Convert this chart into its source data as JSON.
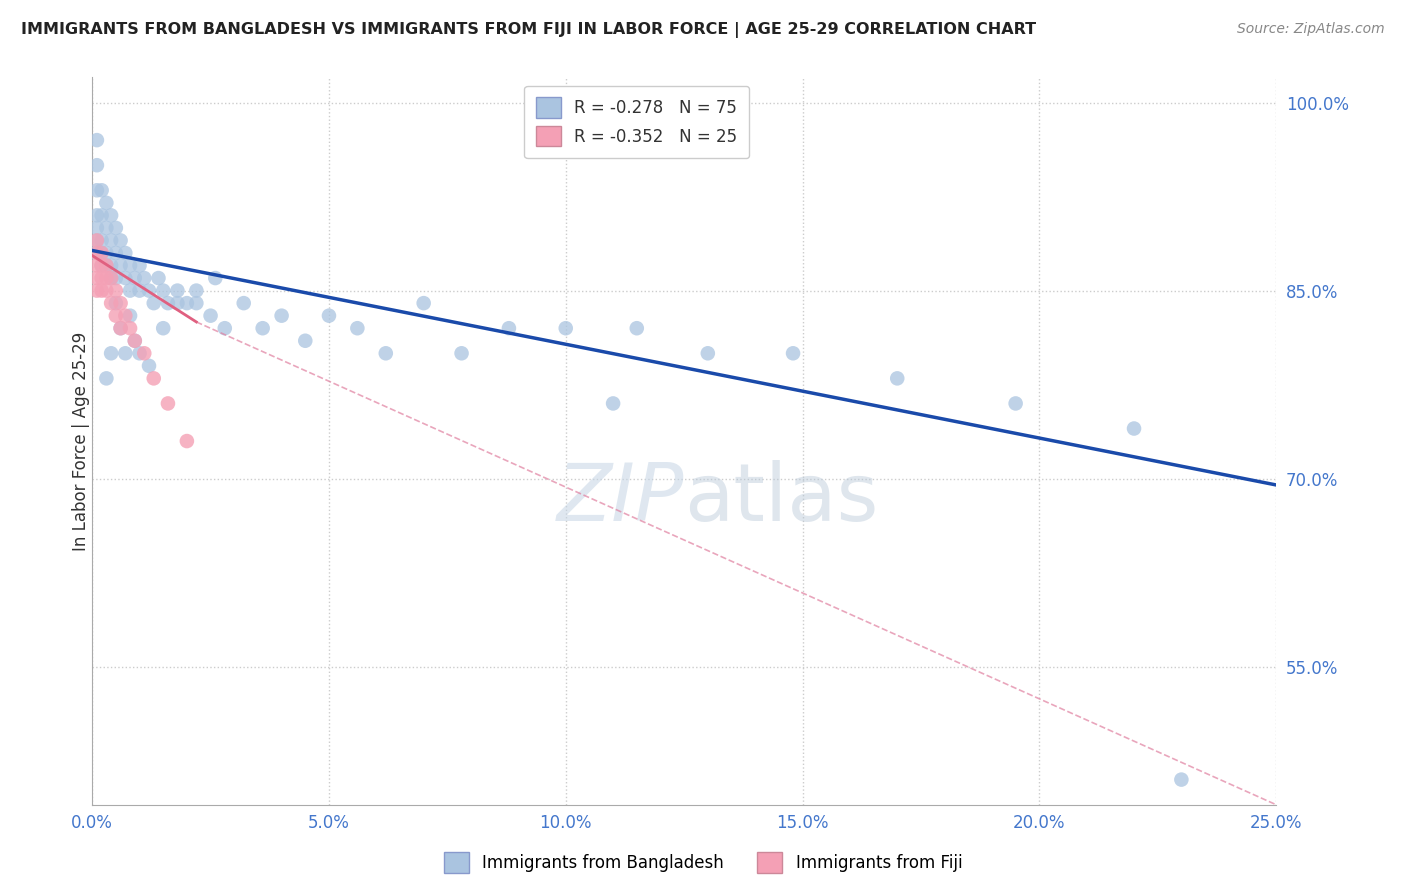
{
  "title": "IMMIGRANTS FROM BANGLADESH VS IMMIGRANTS FROM FIJI IN LABOR FORCE | AGE 25-29 CORRELATION CHART",
  "source": "Source: ZipAtlas.com",
  "ylabel": "In Labor Force | Age 25-29",
  "xlim": [
    0.0,
    0.25
  ],
  "ylim": [
    0.44,
    1.02
  ],
  "xticks": [
    0.0,
    0.05,
    0.1,
    0.15,
    0.2,
    0.25
  ],
  "yticks": [
    0.55,
    0.7,
    0.85,
    1.0
  ],
  "ytick_labels": [
    "55.0%",
    "70.0%",
    "85.0%",
    "100.0%"
  ],
  "xtick_labels": [
    "0.0%",
    "5.0%",
    "10.0%",
    "15.0%",
    "20.0%",
    "25.0%"
  ],
  "legend_bangladesh": "Immigrants from Bangladesh",
  "legend_fiji": "Immigrants from Fiji",
  "R_bangladesh": -0.278,
  "N_bangladesh": 75,
  "R_fiji": -0.352,
  "N_fiji": 25,
  "color_bangladesh": "#aac4e0",
  "color_fiji": "#f4a0b5",
  "trendline_bangladesh_color": "#1a4aaa",
  "trendline_fiji_color": "#e06080",
  "trendline_fiji_dashed_color": "#e080a0",
  "watermark_color": "#ccd8e8",
  "background_color": "#ffffff",
  "grid_color": "#cccccc",
  "bd_x": [
    0.001,
    0.001,
    0.001,
    0.001,
    0.001,
    0.001,
    0.001,
    0.002,
    0.002,
    0.002,
    0.002,
    0.002,
    0.003,
    0.003,
    0.003,
    0.003,
    0.004,
    0.004,
    0.004,
    0.004,
    0.005,
    0.005,
    0.005,
    0.006,
    0.006,
    0.007,
    0.007,
    0.008,
    0.008,
    0.009,
    0.01,
    0.01,
    0.011,
    0.012,
    0.013,
    0.014,
    0.015,
    0.016,
    0.018,
    0.02,
    0.022,
    0.025,
    0.028,
    0.032,
    0.036,
    0.04,
    0.045,
    0.05,
    0.056,
    0.062,
    0.07,
    0.078,
    0.088,
    0.1,
    0.115,
    0.13,
    0.148,
    0.17,
    0.195,
    0.22,
    0.003,
    0.004,
    0.005,
    0.006,
    0.007,
    0.008,
    0.009,
    0.01,
    0.012,
    0.015,
    0.018,
    0.022,
    0.026,
    0.11,
    0.23
  ],
  "bd_y": [
    0.97,
    0.95,
    0.93,
    0.91,
    0.9,
    0.89,
    0.88,
    0.93,
    0.91,
    0.89,
    0.88,
    0.87,
    0.92,
    0.9,
    0.88,
    0.87,
    0.91,
    0.89,
    0.87,
    0.86,
    0.9,
    0.88,
    0.86,
    0.89,
    0.87,
    0.88,
    0.86,
    0.87,
    0.85,
    0.86,
    0.87,
    0.85,
    0.86,
    0.85,
    0.84,
    0.86,
    0.85,
    0.84,
    0.85,
    0.84,
    0.84,
    0.83,
    0.82,
    0.84,
    0.82,
    0.83,
    0.81,
    0.83,
    0.82,
    0.8,
    0.84,
    0.8,
    0.82,
    0.82,
    0.82,
    0.8,
    0.8,
    0.78,
    0.76,
    0.74,
    0.78,
    0.8,
    0.84,
    0.82,
    0.8,
    0.83,
    0.81,
    0.8,
    0.79,
    0.82,
    0.84,
    0.85,
    0.86,
    0.76,
    0.46
  ],
  "fj_x": [
    0.001,
    0.001,
    0.001,
    0.001,
    0.001,
    0.002,
    0.002,
    0.002,
    0.002,
    0.003,
    0.003,
    0.003,
    0.004,
    0.004,
    0.005,
    0.005,
    0.006,
    0.006,
    0.007,
    0.008,
    0.009,
    0.011,
    0.013,
    0.016,
    0.02
  ],
  "fj_y": [
    0.89,
    0.88,
    0.87,
    0.86,
    0.85,
    0.88,
    0.87,
    0.86,
    0.85,
    0.87,
    0.86,
    0.85,
    0.86,
    0.84,
    0.85,
    0.83,
    0.84,
    0.82,
    0.83,
    0.82,
    0.81,
    0.8,
    0.78,
    0.76,
    0.73
  ],
  "trendline_bd_x0": 0.0,
  "trendline_bd_x1": 0.25,
  "trendline_bd_y0": 0.882,
  "trendline_bd_y1": 0.695,
  "trendline_fj_solid_x0": 0.0,
  "trendline_fj_solid_x1": 0.022,
  "trendline_fj_y0": 0.878,
  "trendline_fj_y1": 0.825,
  "trendline_fj_dashed_x0": 0.022,
  "trendline_fj_dashed_x1": 0.25,
  "trendline_fj_dashed_y1": 0.44
}
